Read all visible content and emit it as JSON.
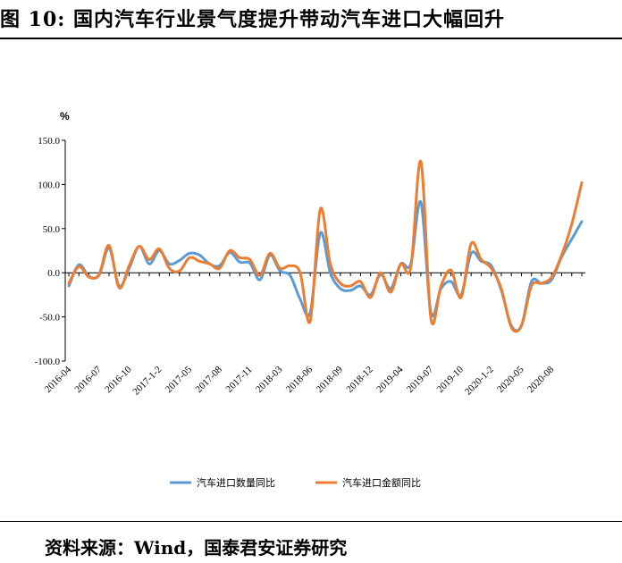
{
  "figure": {
    "title": "图 10:  国内汽车行业景气度提升带动汽车进口大幅回升",
    "source": "资料来源：Wind，国泰君安证券研究"
  },
  "chart_data": {
    "type": "line",
    "ylabel": "%",
    "ylim": [
      -100,
      150
    ],
    "yticks": [
      "150.0",
      "100.0",
      "50.0",
      "0.0",
      "-50.0",
      "-100.0"
    ],
    "ytick_values": [
      150,
      100,
      50,
      0,
      -50,
      -100
    ],
    "x": [
      "2016-04",
      "2016-05",
      "2016-06",
      "2016-07",
      "2016-08",
      "2016-09",
      "2016-10",
      "2016-11",
      "2016-12",
      "2017-1-2",
      "2017-03",
      "2017-04",
      "2017-05",
      "2017-06",
      "2017-07",
      "2017-08",
      "2017-09",
      "2017-10",
      "2017-11",
      "2017-12",
      "2018-1-2",
      "2018-03",
      "2018-04",
      "2018-05",
      "2018-06",
      "2018-07",
      "2018-08",
      "2018-09",
      "2018-10",
      "2018-11",
      "2018-12",
      "2019-1-2",
      "2019-03",
      "2019-04",
      "2019-05",
      "2019-06",
      "2019-07",
      "2019-08",
      "2019-09",
      "2019-10",
      "2019-11",
      "2019-12",
      "2020-1-2",
      "2020-03",
      "2020-04",
      "2020-05",
      "2020-06",
      "2020-07",
      "2020-08",
      "2020-09",
      "2020-10",
      "2020-11"
    ],
    "xtick_labels": [
      "2016-04",
      "2016-07",
      "2016-10",
      "2017-1-2",
      "2017-05",
      "2017-08",
      "2017-11",
      "2018-03",
      "2018-06",
      "2018-09",
      "2018-12",
      "2019-04",
      "2019-07",
      "2019-10",
      "2020-1-2",
      "2020-05",
      "2020-08"
    ],
    "grid": false,
    "legend_position": "bottom",
    "series": [
      {
        "name": "汽车进口数量同比",
        "color": "#5B9BD5",
        "values": [
          -15,
          9,
          -4,
          -3,
          28,
          -15,
          5,
          30,
          10,
          25,
          10,
          14,
          22,
          20,
          10,
          8,
          23,
          12,
          11,
          -8,
          20,
          2,
          -3,
          -30,
          -45,
          45,
          0,
          -18,
          -20,
          -15,
          -25,
          -2,
          -18,
          10,
          10,
          80,
          -45,
          -18,
          -10,
          -25,
          22,
          13,
          8,
          -20,
          -60,
          -60,
          -10,
          -12,
          -8,
          18,
          38,
          58
        ]
      },
      {
        "name": "汽车进口金额同比",
        "color": "#ED7D31",
        "values": [
          -12,
          7,
          -5,
          -2,
          31,
          -17,
          8,
          30,
          15,
          27,
          5,
          2,
          17,
          13,
          10,
          5,
          25,
          17,
          15,
          -3,
          22,
          5,
          8,
          0,
          -55,
          72,
          10,
          -12,
          -15,
          -10,
          -28,
          0,
          -22,
          10,
          6,
          126,
          -52,
          -15,
          3,
          -28,
          33,
          15,
          5,
          -18,
          -62,
          -60,
          -15,
          -12,
          -5,
          20,
          55,
          102
        ]
      }
    ]
  }
}
